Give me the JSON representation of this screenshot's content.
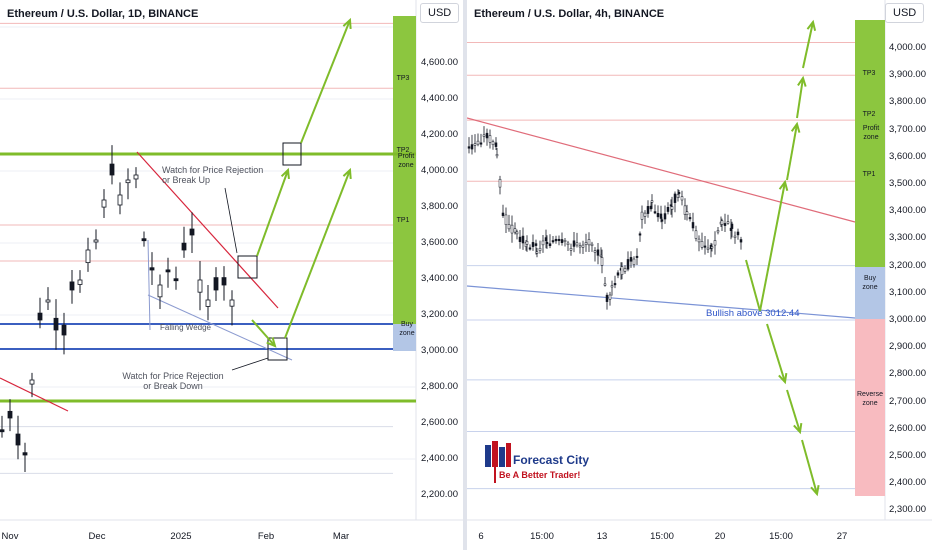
{
  "left_chart": {
    "title": "Ethereum / U.S. Dollar, 1D, BINANCE",
    "currency": "USD",
    "y_labels": [
      "4,600.00",
      "4,400.00",
      "4,200.00",
      "4,000.00",
      "3,800.00",
      "3,600.00",
      "3,400.00",
      "3,200.00",
      "3,000.00",
      "2,800.00",
      "2,600.00",
      "2,400.00",
      "2,200.00"
    ],
    "x_labels": [
      "Nov",
      "Dec",
      "2025",
      "Feb",
      "Mar"
    ],
    "zones": {
      "tp3": "TP3",
      "tp2": "TP2",
      "profit_zone": "Profit zone",
      "tp1": "TP1",
      "buy_zone": "Buy zone"
    },
    "annotations": {
      "watch_up": "Watch for Price Rejection or Break Up",
      "watch_down": "Watch for Price Rejection or Break Down",
      "falling_wedge": "Falling Wedge"
    }
  },
  "right_chart": {
    "title": "Ethereum / U.S. Dollar, 4h, BINANCE",
    "currency": "USD",
    "y_labels": [
      "4,000.00",
      "3,900.00",
      "3,800.00",
      "3,700.00",
      "3,600.00",
      "3,500.00",
      "3,400.00",
      "3,300.00",
      "3,200.00",
      "3,100.00",
      "3,000.00",
      "2,900.00",
      "2,800.00",
      "2,700.00",
      "2,600.00",
      "2,500.00",
      "2,400.00",
      "2,300.00"
    ],
    "x_labels": [
      "6",
      "15:00",
      "13",
      "15:00",
      "20",
      "15:00",
      "27"
    ],
    "zones": {
      "tp3": "TP3",
      "tp2": "TP2",
      "profit_zone": "Profit zone",
      "tp1": "TP1",
      "buy_zone": "Buy zone",
      "reverse_zone": "Reverse zone"
    },
    "annotations": {
      "bullish": "Bullish above 3012.44"
    }
  },
  "logo": {
    "name": "Forecast City",
    "tagline": "Be A Better Trader!"
  },
  "colors": {
    "green": "#8cc63f",
    "green_line": "#7fbc2a",
    "blue": "#3b5fc0",
    "red": "#e57373",
    "pink": "#f8bbc0",
    "buy": "#b3c6e6"
  }
}
